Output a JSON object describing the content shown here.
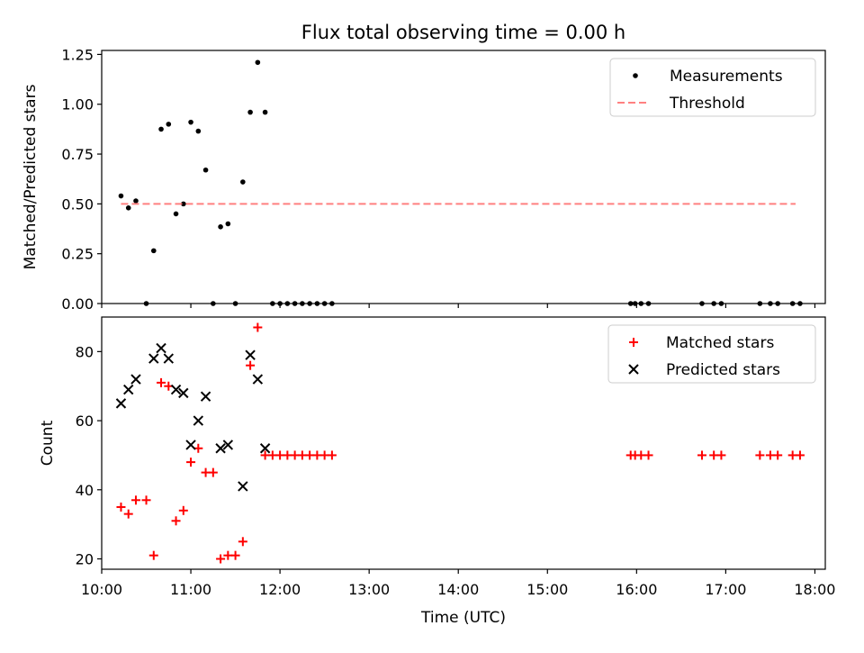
{
  "chart_data": [
    {
      "type": "scatter",
      "title": "Flux total observing time = 0.00 h",
      "xlabel": "",
      "ylabel": "Matched/Predicted stars",
      "xlim": [
        "10:00",
        "18:07"
      ],
      "ylim": [
        0,
        1.27
      ],
      "yticks": [
        0.0,
        0.25,
        0.5,
        0.75,
        1.0,
        1.25
      ],
      "ytick_labels": [
        "0.00",
        "0.25",
        "0.50",
        "0.75",
        "1.00",
        "1.25"
      ],
      "xticks": [
        "10:00",
        "11:00",
        "12:00",
        "13:00",
        "14:00",
        "15:00",
        "16:00",
        "17:00",
        "18:00"
      ],
      "show_xtick_labels": false,
      "legend_position": "top-right",
      "legend": [
        "Measurements",
        "Threshold"
      ],
      "series": [
        {
          "name": "Measurements",
          "kind": "points",
          "color": "#000000",
          "x": [
            "10:13",
            "10:18",
            "10:23",
            "10:30",
            "10:35",
            "10:40",
            "10:45",
            "10:50",
            "10:55",
            "11:00",
            "11:05",
            "11:10",
            "11:15",
            "11:20",
            "11:25",
            "11:30",
            "11:35",
            "11:40",
            "11:45",
            "11:50",
            "11:55",
            "12:00",
            "12:05",
            "12:10",
            "12:15",
            "12:20",
            "12:25",
            "12:30",
            "12:35",
            "15:56",
            "15:59",
            "16:03",
            "16:08",
            "16:44",
            "16:52",
            "16:57",
            "17:23",
            "17:30",
            "17:35",
            "17:45",
            "17:50"
          ],
          "y": [
            0.54,
            0.48,
            0.515,
            0.0,
            0.265,
            0.875,
            0.9,
            0.45,
            0.5,
            0.91,
            0.865,
            0.67,
            0.0,
            0.385,
            0.4,
            0.0,
            0.61,
            0.96,
            1.21,
            0.96,
            0.0,
            0.0,
            0.0,
            0.0,
            0.0,
            0.0,
            0.0,
            0.0,
            0.0,
            0.0,
            0.0,
            0.0,
            0.0,
            0.0,
            0.0,
            0.0,
            0.0,
            0.0,
            0.0,
            0.0,
            0.0
          ]
        },
        {
          "name": "Threshold",
          "kind": "dashed-line",
          "color": "#ff8080",
          "x": [
            "10:13",
            "17:47"
          ],
          "y": [
            0.5,
            0.5
          ]
        }
      ]
    },
    {
      "type": "scatter",
      "title": "",
      "xlabel": "Time (UTC)",
      "ylabel": "Count",
      "xlim": [
        "10:00",
        "18:07"
      ],
      "ylim": [
        17,
        90
      ],
      "yticks": [
        20,
        40,
        60,
        80
      ],
      "ytick_labels": [
        "20",
        "40",
        "60",
        "80"
      ],
      "xticks": [
        "10:00",
        "11:00",
        "12:00",
        "13:00",
        "14:00",
        "15:00",
        "16:00",
        "17:00",
        "18:00"
      ],
      "show_xtick_labels": true,
      "legend_position": "top-right",
      "legend": [
        "Matched stars",
        "Predicted stars"
      ],
      "series": [
        {
          "name": "Matched stars",
          "kind": "plus",
          "color": "#ff0000",
          "x": [
            "10:13",
            "10:18",
            "10:23",
            "10:30",
            "10:35",
            "10:40",
            "10:45",
            "10:50",
            "10:55",
            "11:00",
            "11:05",
            "11:10",
            "11:15",
            "11:20",
            "11:25",
            "11:30",
            "11:35",
            "11:40",
            "11:45",
            "11:50",
            "11:55",
            "12:00",
            "12:05",
            "12:10",
            "12:15",
            "12:20",
            "12:25",
            "12:30",
            "12:35",
            "15:56",
            "15:59",
            "16:03",
            "16:08",
            "16:44",
            "16:52",
            "16:57",
            "17:23",
            "17:30",
            "17:35",
            "17:45",
            "17:50"
          ],
          "y": [
            35,
            33,
            37,
            37,
            21,
            71,
            70,
            31,
            34,
            48,
            52,
            45,
            45,
            20,
            21,
            21,
            25,
            76,
            87,
            50,
            50,
            50,
            50,
            50,
            50,
            50,
            50,
            50,
            50,
            50,
            50,
            50,
            50,
            50,
            50,
            50,
            50,
            50,
            50,
            50,
            50
          ]
        },
        {
          "name": "Predicted stars",
          "kind": "cross",
          "color": "#000000",
          "x": [
            "10:13",
            "10:18",
            "10:23",
            "10:35",
            "10:40",
            "10:45",
            "10:50",
            "10:55",
            "11:00",
            "11:05",
            "11:10",
            "11:20",
            "11:25",
            "11:35",
            "11:40",
            "11:45",
            "11:50"
          ],
          "y": [
            65,
            69,
            72,
            78,
            81,
            78,
            69,
            68,
            53,
            60,
            67,
            52,
            53,
            41,
            79,
            72,
            52
          ]
        }
      ]
    }
  ]
}
